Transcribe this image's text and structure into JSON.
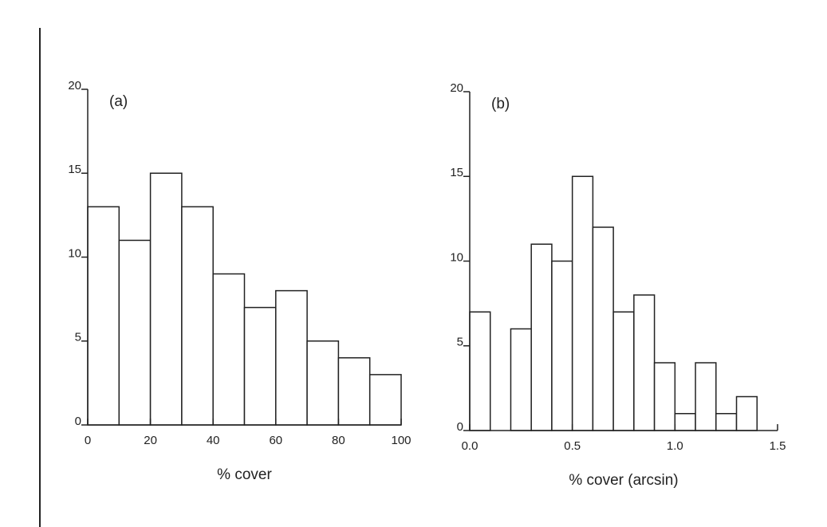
{
  "chart_data": [
    {
      "type": "histogram",
      "annotation": "(a)",
      "x_label": "% cover",
      "bins": [
        0,
        10,
        20,
        30,
        40,
        50,
        60,
        70,
        80,
        90,
        100
      ],
      "counts": [
        13,
        11,
        15,
        13,
        9,
        7,
        8,
        5,
        4,
        3
      ],
      "xlim": [
        0,
        100
      ],
      "xticks": [
        0,
        20,
        40,
        60,
        80,
        100
      ],
      "ylim": [
        0,
        20
      ],
      "yticks": [
        0,
        5,
        10,
        15,
        20
      ],
      "color": "#ffffff"
    },
    {
      "type": "histogram",
      "annotation": "(b)",
      "x_label": "% cover (arcsin)",
      "bins": [
        0,
        0.1,
        0.2,
        0.3,
        0.4,
        0.5,
        0.6,
        0.7,
        0.8,
        0.9,
        1.0,
        1.1,
        1.2,
        1.3,
        1.4
      ],
      "counts": [
        7,
        0,
        6,
        11,
        10,
        15,
        12,
        7,
        8,
        4,
        1,
        4,
        1,
        2
      ],
      "xlim": [
        0,
        1.5
      ],
      "xticks": [
        {
          "value": 0,
          "label": "0.0"
        },
        0.5,
        {
          "value": 1,
          "label": "1.0"
        },
        1.5
      ],
      "ylim": [
        0,
        20
      ],
      "yticks": [
        0,
        5,
        10,
        15,
        20
      ],
      "color": "#ffffff"
    }
  ]
}
